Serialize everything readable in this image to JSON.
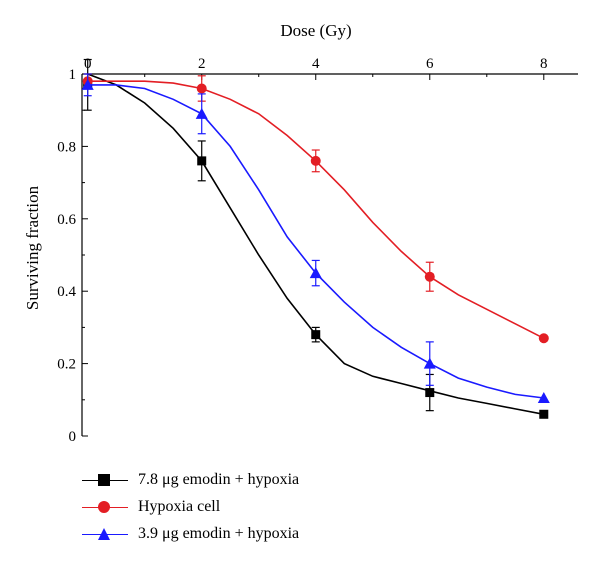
{
  "chart_data": {
    "type": "line",
    "title": "",
    "xlabel": "Dose (Gy)",
    "ylabel": "Surviving fraction",
    "x_ticks": [
      "0",
      "2",
      "4",
      "6",
      "8"
    ],
    "y_ticks": [
      "0",
      "0.2",
      "0.4",
      "0.6",
      "0.8",
      "1"
    ],
    "xlim": [
      -0.1,
      8.6
    ],
    "ylim": [
      0,
      1
    ],
    "x_axis_position": "top",
    "grid": false,
    "legend_position": "bottom-left",
    "series": [
      {
        "name": "7.8 μg emodin + hypoxia",
        "color": "#000000",
        "marker": "square",
        "x": [
          0,
          2,
          4,
          6,
          8
        ],
        "y": [
          0.97,
          0.76,
          0.28,
          0.12,
          0.06
        ],
        "err": [
          0.07,
          0.055,
          0.02,
          0.05,
          0.0
        ],
        "curve": [
          [
            0,
            1.0
          ],
          [
            0.5,
            0.97
          ],
          [
            1,
            0.92
          ],
          [
            1.5,
            0.85
          ],
          [
            2,
            0.76
          ],
          [
            2.5,
            0.63
          ],
          [
            3,
            0.5
          ],
          [
            3.5,
            0.38
          ],
          [
            4,
            0.28
          ],
          [
            4.5,
            0.2
          ],
          [
            5,
            0.165
          ],
          [
            5.5,
            0.145
          ],
          [
            6,
            0.125
          ],
          [
            6.5,
            0.105
          ],
          [
            7,
            0.09
          ],
          [
            7.5,
            0.075
          ],
          [
            8,
            0.06
          ]
        ]
      },
      {
        "name": "Hypoxia cell",
        "color": "#e31e24",
        "marker": "circle",
        "x": [
          0,
          2,
          4,
          6,
          8
        ],
        "y": [
          0.98,
          0.96,
          0.76,
          0.44,
          0.27
        ],
        "err": [
          0.02,
          0.035,
          0.03,
          0.04,
          0.0
        ],
        "curve": [
          [
            0,
            0.98
          ],
          [
            0.5,
            0.98
          ],
          [
            1,
            0.98
          ],
          [
            1.5,
            0.975
          ],
          [
            2,
            0.96
          ],
          [
            2.5,
            0.93
          ],
          [
            3,
            0.89
          ],
          [
            3.5,
            0.83
          ],
          [
            4,
            0.76
          ],
          [
            4.5,
            0.68
          ],
          [
            5,
            0.59
          ],
          [
            5.5,
            0.51
          ],
          [
            6,
            0.44
          ],
          [
            6.5,
            0.39
          ],
          [
            7,
            0.35
          ],
          [
            7.5,
            0.31
          ],
          [
            8,
            0.27
          ]
        ]
      },
      {
        "name": "3.9 μg emodin + hypoxia",
        "color": "#1a1aff",
        "marker": "triangle",
        "x": [
          0,
          2,
          4,
          6,
          8
        ],
        "y": [
          0.97,
          0.89,
          0.45,
          0.2,
          0.105
        ],
        "err": [
          0.03,
          0.055,
          0.035,
          0.06,
          0.0
        ],
        "curve": [
          [
            0,
            0.97
          ],
          [
            0.5,
            0.97
          ],
          [
            1,
            0.96
          ],
          [
            1.5,
            0.93
          ],
          [
            2,
            0.89
          ],
          [
            2.5,
            0.8
          ],
          [
            3,
            0.68
          ],
          [
            3.5,
            0.55
          ],
          [
            4,
            0.45
          ],
          [
            4.5,
            0.37
          ],
          [
            5,
            0.3
          ],
          [
            5.5,
            0.245
          ],
          [
            6,
            0.2
          ],
          [
            6.5,
            0.16
          ],
          [
            7,
            0.135
          ],
          [
            7.5,
            0.115
          ],
          [
            8,
            0.105
          ]
        ]
      }
    ]
  }
}
